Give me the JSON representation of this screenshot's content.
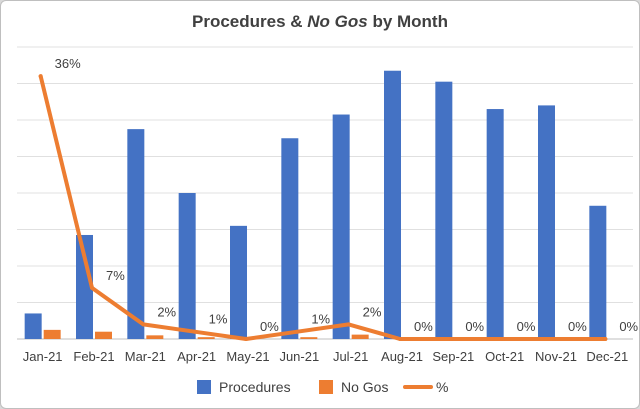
{
  "chart_data": {
    "type": "bar",
    "title_parts": [
      "Procedures & ",
      "No Gos",
      " by Month"
    ],
    "categories": [
      "Jan-21",
      "Feb-21",
      "Mar-21",
      "Apr-21",
      "May-21",
      "Jun-21",
      "Jul-21",
      "Aug-21",
      "Sep-21",
      "Oct-21",
      "Nov-21",
      "Dec-21"
    ],
    "series": [
      {
        "name": "Procedures",
        "type": "bar",
        "color": "#4472C4",
        "values": [
          7,
          28.5,
          57.5,
          40,
          31,
          55,
          61.5,
          73.5,
          70.5,
          63,
          64,
          36.5
        ]
      },
      {
        "name": "No Gos",
        "type": "bar",
        "color": "#ED7D31",
        "values": [
          2.5,
          2,
          1,
          0.5,
          0,
          0.5,
          1.2,
          0,
          0,
          0,
          0,
          0
        ]
      },
      {
        "name": "%",
        "type": "line",
        "color": "#ED7D31",
        "values": [
          36,
          7,
          2,
          1,
          0,
          1,
          2,
          0,
          0,
          0,
          0,
          0
        ],
        "labels": [
          "36%",
          "7%",
          "2%",
          "1%",
          "0%",
          "1%",
          "2%",
          "0%",
          "0%",
          "0%",
          "0%",
          "0%"
        ]
      }
    ],
    "ylim": [
      0,
      80
    ],
    "pct_ylim": [
      0,
      40
    ],
    "grid": true,
    "legend": "bottom"
  }
}
